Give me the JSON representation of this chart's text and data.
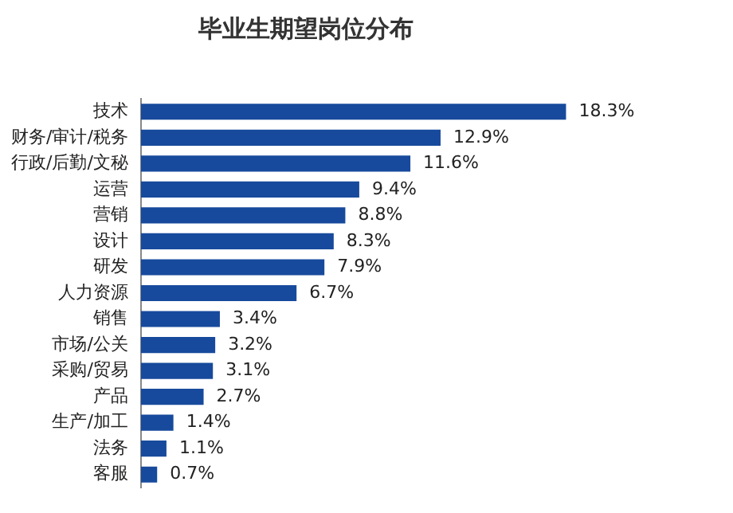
{
  "chart_data": {
    "type": "bar",
    "orientation": "horizontal",
    "title": "毕业生期望岗位分布",
    "categories": [
      "技术",
      "财务/审计/税务",
      "行政/后勤/文秘",
      "运营",
      "营销",
      "设计",
      "研发",
      "人力资源",
      "销售",
      "市场/公关",
      "采购/贸易",
      "产品",
      "生产/加工",
      "法务",
      "客服"
    ],
    "values": [
      18.3,
      12.9,
      11.6,
      9.4,
      8.8,
      8.3,
      7.9,
      6.7,
      3.4,
      3.2,
      3.1,
      2.7,
      1.4,
      1.1,
      0.7
    ],
    "value_labels": [
      "18.3%",
      "12.9%",
      "11.6%",
      "9.4%",
      "8.8%",
      "8.3%",
      "7.9%",
      "6.7%",
      "3.4%",
      "3.2%",
      "3.1%",
      "2.7%",
      "1.4%",
      "1.1%",
      "0.7%"
    ],
    "color": "#174a9c"
  }
}
